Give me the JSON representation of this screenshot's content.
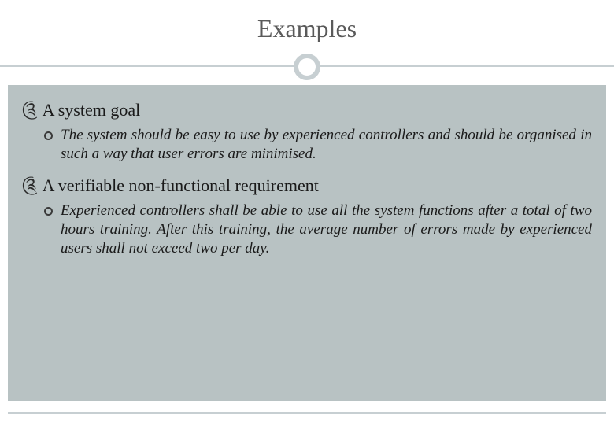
{
  "slide": {
    "title": "Examples",
    "title_color": "#5a5a5a",
    "title_fontsize": 32,
    "divider_color": "#c7cfd2",
    "content_bg": "#b8c2c3",
    "bullets": [
      {
        "level": 1,
        "marker": "༊",
        "text": "A system goal"
      },
      {
        "level": 2,
        "text": "The system should be easy to use by experienced controllers and should be organised in such a way that user errors are minimised."
      },
      {
        "level": 1,
        "marker": "༊",
        "text": "A verifiable non-functional requirement"
      },
      {
        "level": 2,
        "text": "Experienced controllers shall be able to use all the system functions after a total of two hours training. After this training, the average number of errors made by experienced users shall not exceed two per day."
      }
    ]
  }
}
